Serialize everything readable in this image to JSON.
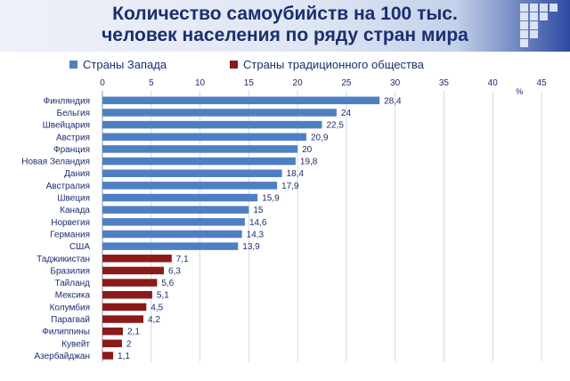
{
  "title_line1": "Количество самоубийств на 100 тыс.",
  "title_line2": "человек населения по ряду стран мира",
  "chart_data": {
    "type": "bar",
    "orientation": "horizontal",
    "title": "Количество самоубийств на 100 тыс. человек населения по ряду стран мира",
    "unit_label": "%",
    "xlim": [
      0,
      45
    ],
    "xticks": [
      0,
      5,
      10,
      15,
      20,
      25,
      30,
      35,
      40,
      45
    ],
    "legend_position": "top-left",
    "series": [
      {
        "name": "Страны Запада",
        "color": "#4f7fc3",
        "categories": [
          "Финляндия",
          "Бельгия",
          "Швейцария",
          "Австрия",
          "Франция",
          "Новая Зеландия",
          "Дания",
          "Австралия",
          "Швеция",
          "Канада",
          "Норвегия",
          "Германия",
          "США"
        ],
        "values": [
          28.4,
          24,
          22.5,
          20.9,
          20,
          19.8,
          18.4,
          17.9,
          15.9,
          15,
          14.6,
          14.3,
          13.9
        ],
        "labels": [
          "28,4",
          "24",
          "22,5",
          "20,9",
          "20",
          "19,8",
          "18,4",
          "17,9",
          "15,9",
          "15",
          "14,6",
          "14,3",
          "13,9"
        ]
      },
      {
        "name": "Страны традиционного общества",
        "color": "#8b1a1a",
        "categories": [
          "Таджикистан",
          "Бразилия",
          "Тайланд",
          "Мексика",
          "Колумбия",
          "Парагвай",
          "Филиппины",
          "Кувейт",
          "Азербайджан"
        ],
        "values": [
          7.1,
          6.3,
          5.6,
          5.1,
          4.5,
          4.2,
          2.1,
          2,
          1.1
        ],
        "labels": [
          "7,1",
          "6,3",
          "5,6",
          "5,1",
          "4,5",
          "4,2",
          "2,1",
          "2",
          "1,1"
        ]
      }
    ]
  }
}
